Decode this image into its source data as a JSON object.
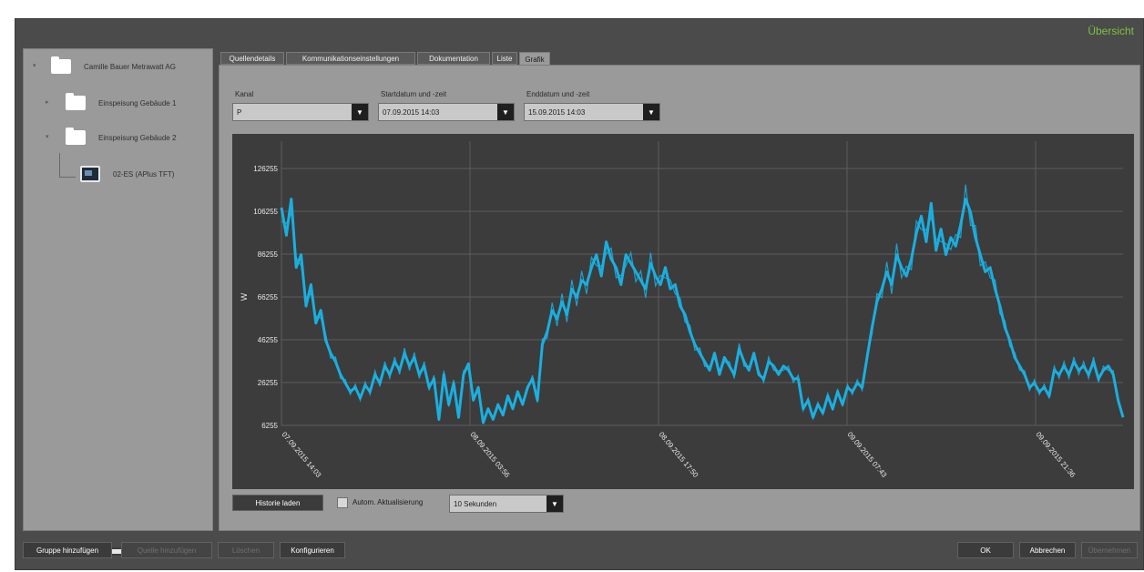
{
  "window": {
    "title_link": "Übersicht"
  },
  "tree": {
    "items": [
      {
        "label": "Camille Bauer Metrawatt AG"
      },
      {
        "label": "Einspeisung Gebäude 1"
      },
      {
        "label": "Einspeisung Gebäude 2"
      },
      {
        "label": "02-ES (APlus TFT)"
      }
    ]
  },
  "tabs": [
    {
      "label": "Quellendetails"
    },
    {
      "label": "Kommunikationseinstellungen"
    },
    {
      "label": "Dokumentation"
    },
    {
      "label": "Liste"
    },
    {
      "label": "Grafik"
    }
  ],
  "filters": {
    "kanal": {
      "label": "Kanal",
      "value": "P"
    },
    "start": {
      "label": "Startdatum und -zeit",
      "value": "07.09.2015 14:03"
    },
    "end": {
      "label": "Enddatum und -zeit",
      "value": "15.09.2015 14:03"
    }
  },
  "controls": {
    "history_button": "Historie laden",
    "auto_update_label": "Autom. Aktualisierung",
    "interval_value": "10 Sekunden"
  },
  "bottom_buttons": {
    "add_group": "Gruppe hinzufügen",
    "add_source": "Quelle hinzufügen",
    "delete": "Löschen",
    "configure": "Konfigurieren",
    "ok": "OK",
    "cancel": "Abbrechen",
    "apply": "Übernehmen"
  },
  "chart_data": {
    "type": "line",
    "title": "",
    "xlabel": "",
    "ylabel": "W",
    "ylim": [
      6255,
      126255
    ],
    "y_ticks": [
      6255,
      26255,
      46255,
      66255,
      86255,
      106255,
      126255
    ],
    "x_tick_labels": [
      "07.09.2015 14:03",
      "08.09.2015 03:56",
      "08.09.2015 17:50",
      "09.09.2015 07:43",
      "09.09.2015 21:36"
    ],
    "grid": true,
    "series": [
      {
        "color": "#19b3e6",
        "values": [
          108000,
          95000,
          112000,
          80000,
          86000,
          62000,
          72000,
          54000,
          60000,
          46000,
          40000,
          36000,
          30000,
          26000,
          22000,
          24000,
          19000,
          25000,
          22000,
          30000,
          26000,
          34000,
          30000,
          36000,
          32000,
          40000,
          34000,
          38000,
          30000,
          34000,
          24000,
          28000,
          9000,
          30000,
          16000,
          26000,
          10000,
          30000,
          35000,
          18000,
          24000,
          7500,
          14000,
          9000,
          16000,
          11000,
          20000,
          14000,
          22000,
          16000,
          24000,
          28000,
          18000,
          44000,
          50000,
          60000,
          56000,
          64000,
          58000,
          70000,
          66000,
          74000,
          72000,
          80000,
          86000,
          76000,
          92000,
          84000,
          80000,
          72000,
          86000,
          82000,
          78000,
          74000,
          70000,
          82000,
          76000,
          72000,
          80000,
          70000,
          72000,
          62000,
          58000,
          50000,
          44000,
          40000,
          36000,
          32000,
          40000,
          30000,
          38000,
          34000,
          30000,
          42000,
          36000,
          32000,
          40000,
          30000,
          28000,
          36000,
          34000,
          30000,
          34000,
          32000,
          28000,
          28000,
          14000,
          18000,
          10000,
          16000,
          12000,
          20000,
          14000,
          22000,
          16000,
          24000,
          22000,
          26000,
          24000,
          38000,
          52000,
          64000,
          70000,
          78000,
          72000,
          86000,
          80000,
          76000,
          84000,
          96000,
          104000,
          92000,
          110000,
          88000,
          98000,
          86000,
          94000,
          90000,
          100000,
          112000,
          106000,
          94000,
          86000,
          78000,
          80000,
          70000,
          62000,
          52000,
          46000,
          38000,
          34000,
          30000,
          24000,
          26000,
          22000,
          24000,
          20000,
          32000,
          30000,
          34000,
          30000,
          36000,
          32000,
          34000,
          30000,
          36000,
          28000,
          32000,
          34000,
          30000,
          18000,
          10000
        ]
      }
    ]
  }
}
